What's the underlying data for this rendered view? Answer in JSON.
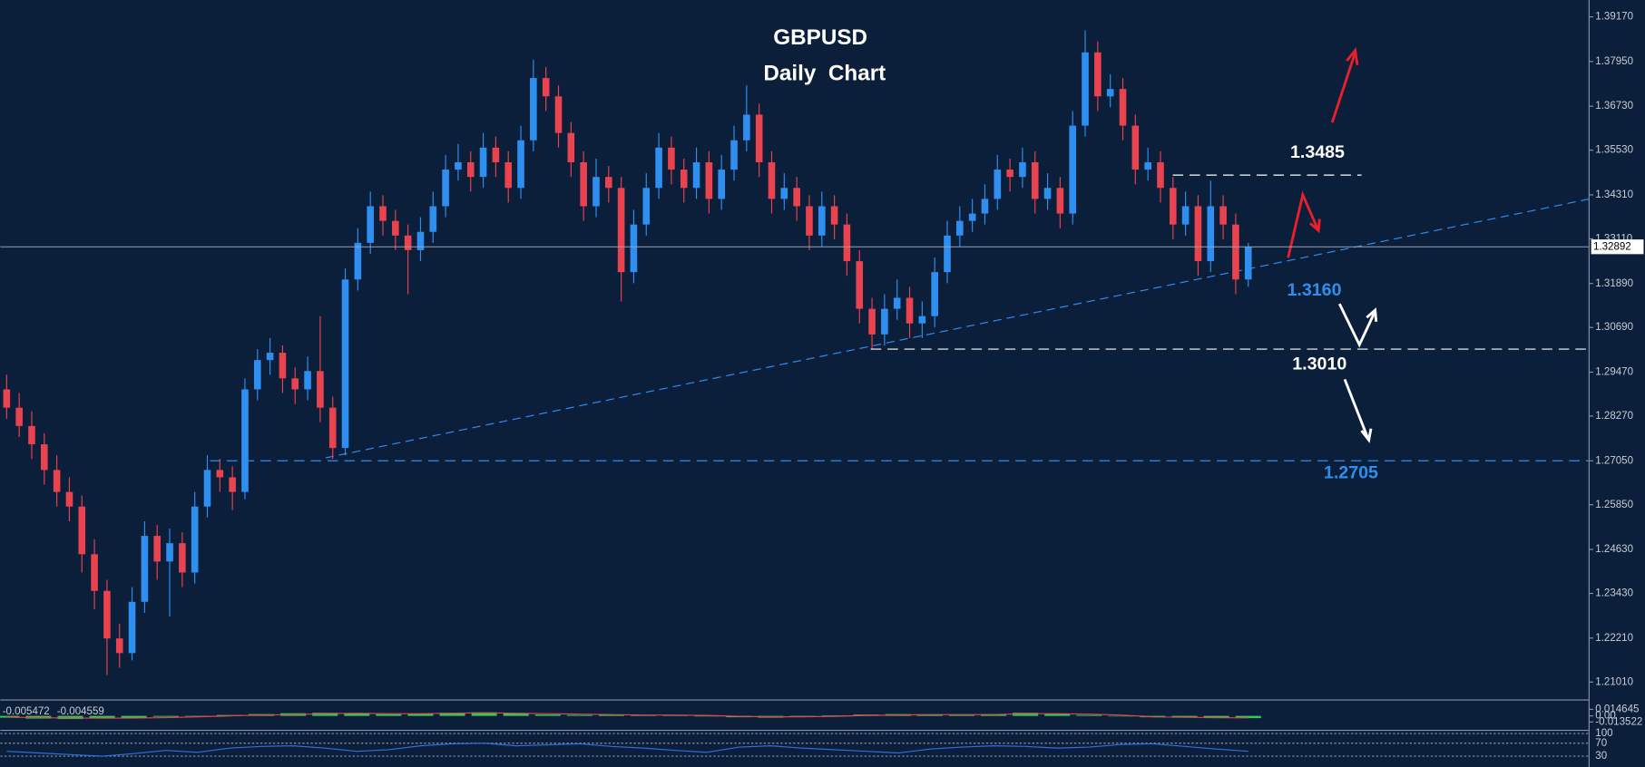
{
  "chart_data": {
    "type": "candlestick",
    "title": "GBPUSD",
    "subtitle": "Daily  Chart",
    "up_color": "#2f8ff0",
    "down_color": "#e8434f",
    "ylim": [
      1.2055,
      1.3963
    ],
    "yticks": [
      {
        "value": 1.3917,
        "label": "1.39170"
      },
      {
        "value": 1.3795,
        "label": "1.37950"
      },
      {
        "value": 1.3673,
        "label": "1.36730"
      },
      {
        "value": 1.3553,
        "label": "1.35530"
      },
      {
        "value": 1.3431,
        "label": "1.34310"
      },
      {
        "value": 1.3311,
        "label": "1.33110"
      },
      {
        "value": 1.3189,
        "label": "1.31890"
      },
      {
        "value": 1.3069,
        "label": "1.30690"
      },
      {
        "value": 1.2947,
        "label": "1.29470"
      },
      {
        "value": 1.2827,
        "label": "1.28270"
      },
      {
        "value": 1.2705,
        "label": "1.27050"
      },
      {
        "value": 1.2585,
        "label": "1.25850"
      },
      {
        "value": 1.2463,
        "label": "1.24630"
      },
      {
        "value": 1.2343,
        "label": "1.23430"
      },
      {
        "value": 1.2221,
        "label": "1.22210"
      },
      {
        "value": 1.2101,
        "label": "1.21010"
      }
    ],
    "current_price": 1.32892,
    "levels": [
      {
        "value": 1.3485,
        "label": "1.3485",
        "color": "#ffffff"
      },
      {
        "value": 1.316,
        "label": "1.3160",
        "color": "#2f8ff0"
      },
      {
        "value": 1.301,
        "label": "1.3010",
        "color": "#ffffff"
      },
      {
        "value": 1.2705,
        "label": "1.2705",
        "color": "#2f8ff0"
      }
    ],
    "candles": [
      [
        1.29,
        1.294,
        1.282,
        1.285
      ],
      [
        1.285,
        1.289,
        1.277,
        1.28
      ],
      [
        1.28,
        1.284,
        1.271,
        1.275
      ],
      [
        1.275,
        1.278,
        1.264,
        1.268
      ],
      [
        1.268,
        1.272,
        1.258,
        1.262
      ],
      [
        1.262,
        1.266,
        1.254,
        1.258
      ],
      [
        1.258,
        1.261,
        1.24,
        1.245
      ],
      [
        1.245,
        1.249,
        1.23,
        1.235
      ],
      [
        1.235,
        1.238,
        1.212,
        1.222
      ],
      [
        1.222,
        1.226,
        1.214,
        1.218
      ],
      [
        1.218,
        1.236,
        1.216,
        1.232
      ],
      [
        1.232,
        1.254,
        1.229,
        1.25
      ],
      [
        1.25,
        1.253,
        1.238,
        1.243
      ],
      [
        1.243,
        1.252,
        1.228,
        1.248
      ],
      [
        1.248,
        1.251,
        1.236,
        1.24
      ],
      [
        1.24,
        1.262,
        1.237,
        1.258
      ],
      [
        1.258,
        1.272,
        1.255,
        1.268
      ],
      [
        1.268,
        1.271,
        1.262,
        1.266
      ],
      [
        1.266,
        1.269,
        1.257,
        1.262
      ],
      [
        1.262,
        1.293,
        1.26,
        1.29
      ],
      [
        1.29,
        1.301,
        1.287,
        1.298
      ],
      [
        1.298,
        1.304,
        1.294,
        1.3
      ],
      [
        1.3,
        1.302,
        1.289,
        1.293
      ],
      [
        1.293,
        1.296,
        1.286,
        1.29
      ],
      [
        1.29,
        1.299,
        1.287,
        1.295
      ],
      [
        1.295,
        1.31,
        1.281,
        1.285
      ],
      [
        1.285,
        1.288,
        1.271,
        1.274
      ],
      [
        1.274,
        1.323,
        1.272,
        1.32
      ],
      [
        1.32,
        1.334,
        1.317,
        1.33
      ],
      [
        1.33,
        1.344,
        1.327,
        1.34
      ],
      [
        1.34,
        1.343,
        1.332,
        1.336
      ],
      [
        1.336,
        1.339,
        1.328,
        1.332
      ],
      [
        1.332,
        1.335,
        1.316,
        1.328
      ],
      [
        1.328,
        1.337,
        1.325,
        1.333
      ],
      [
        1.333,
        1.344,
        1.33,
        1.34
      ],
      [
        1.34,
        1.354,
        1.337,
        1.35
      ],
      [
        1.35,
        1.357,
        1.347,
        1.352
      ],
      [
        1.352,
        1.355,
        1.344,
        1.348
      ],
      [
        1.348,
        1.36,
        1.345,
        1.356
      ],
      [
        1.356,
        1.359,
        1.348,
        1.352
      ],
      [
        1.352,
        1.355,
        1.341,
        1.345
      ],
      [
        1.345,
        1.362,
        1.342,
        1.358
      ],
      [
        1.358,
        1.38,
        1.355,
        1.375
      ],
      [
        1.375,
        1.378,
        1.366,
        1.37
      ],
      [
        1.37,
        1.373,
        1.356,
        1.36
      ],
      [
        1.36,
        1.363,
        1.348,
        1.352
      ],
      [
        1.352,
        1.355,
        1.336,
        1.34
      ],
      [
        1.34,
        1.353,
        1.337,
        1.348
      ],
      [
        1.348,
        1.351,
        1.341,
        1.345
      ],
      [
        1.345,
        1.348,
        1.314,
        1.322
      ],
      [
        1.322,
        1.339,
        1.319,
        1.335
      ],
      [
        1.335,
        1.349,
        1.332,
        1.345
      ],
      [
        1.345,
        1.36,
        1.342,
        1.356
      ],
      [
        1.356,
        1.359,
        1.346,
        1.35
      ],
      [
        1.35,
        1.353,
        1.341,
        1.345
      ],
      [
        1.345,
        1.356,
        1.342,
        1.352
      ],
      [
        1.352,
        1.355,
        1.338,
        1.342
      ],
      [
        1.342,
        1.354,
        1.339,
        1.35
      ],
      [
        1.35,
        1.362,
        1.347,
        1.358
      ],
      [
        1.358,
        1.373,
        1.355,
        1.365
      ],
      [
        1.365,
        1.368,
        1.348,
        1.352
      ],
      [
        1.352,
        1.355,
        1.338,
        1.342
      ],
      [
        1.342,
        1.349,
        1.339,
        1.345
      ],
      [
        1.345,
        1.348,
        1.336,
        1.34
      ],
      [
        1.34,
        1.343,
        1.328,
        1.332
      ],
      [
        1.332,
        1.344,
        1.329,
        1.34
      ],
      [
        1.34,
        1.343,
        1.331,
        1.335
      ],
      [
        1.335,
        1.338,
        1.321,
        1.325
      ],
      [
        1.325,
        1.328,
        1.308,
        1.312
      ],
      [
        1.312,
        1.315,
        1.301,
        1.305
      ],
      [
        1.305,
        1.316,
        1.302,
        1.312
      ],
      [
        1.312,
        1.32,
        1.309,
        1.315
      ],
      [
        1.315,
        1.318,
        1.304,
        1.308
      ],
      [
        1.308,
        1.314,
        1.304,
        1.31
      ],
      [
        1.31,
        1.326,
        1.307,
        1.322
      ],
      [
        1.322,
        1.336,
        1.319,
        1.332
      ],
      [
        1.332,
        1.34,
        1.329,
        1.336
      ],
      [
        1.336,
        1.342,
        1.333,
        1.338
      ],
      [
        1.338,
        1.346,
        1.335,
        1.342
      ],
      [
        1.342,
        1.354,
        1.339,
        1.35
      ],
      [
        1.35,
        1.353,
        1.344,
        1.348
      ],
      [
        1.348,
        1.356,
        1.345,
        1.352
      ],
      [
        1.352,
        1.355,
        1.338,
        1.342
      ],
      [
        1.342,
        1.349,
        1.339,
        1.345
      ],
      [
        1.345,
        1.348,
        1.334,
        1.338
      ],
      [
        1.338,
        1.366,
        1.335,
        1.362
      ],
      [
        1.362,
        1.388,
        1.359,
        1.382
      ],
      [
        1.382,
        1.385,
        1.366,
        1.37
      ],
      [
        1.37,
        1.376,
        1.367,
        1.372
      ],
      [
        1.372,
        1.375,
        1.358,
        1.362
      ],
      [
        1.362,
        1.365,
        1.346,
        1.35
      ],
      [
        1.35,
        1.356,
        1.347,
        1.352
      ],
      [
        1.352,
        1.355,
        1.341,
        1.345
      ],
      [
        1.345,
        1.348,
        1.331,
        1.335
      ],
      [
        1.335,
        1.344,
        1.332,
        1.34
      ],
      [
        1.34,
        1.343,
        1.321,
        1.325
      ],
      [
        1.325,
        1.347,
        1.322,
        1.34
      ],
      [
        1.34,
        1.343,
        1.331,
        1.335
      ],
      [
        1.335,
        1.338,
        1.316,
        1.32
      ],
      [
        1.32,
        1.33,
        1.318,
        1.3289
      ]
    ],
    "macd": {
      "readout": [
        -0.005472,
        -0.004559
      ],
      "ylim": [
        -0.03,
        0.0334
      ],
      "yticks": [
        0.014645,
        {
          "value": 0,
          "label": "0.00"
        },
        -0.013522
      ],
      "hist_color": "#2ecc55",
      "signal_color": "#e8434f",
      "histogram": [
        -0.004,
        -0.006,
        -0.007,
        -0.006,
        -0.004,
        -0.002,
        0.0,
        0.002,
        0.004,
        0.006,
        0.007,
        0.006,
        0.004,
        0.005,
        0.007,
        0.008,
        0.006,
        0.003,
        0.002,
        0.003,
        0.002,
        0.001,
        -0.001,
        -0.003,
        -0.004,
        -0.002,
        0.001,
        0.003,
        0.004,
        0.003,
        0.002,
        0.004,
        0.007,
        0.005,
        0.002,
        -0.001,
        -0.003,
        -0.004,
        -0.005,
        -0.005
      ],
      "signal": [
        -0.003,
        -0.004,
        -0.005,
        -0.005,
        -0.005,
        -0.004,
        -0.002,
        0.0,
        0.002,
        0.003,
        0.005,
        0.006,
        0.005,
        0.005,
        0.006,
        0.007,
        0.006,
        0.005,
        0.004,
        0.003,
        0.002,
        0.002,
        0.001,
        -0.001,
        -0.002,
        -0.002,
        -0.001,
        0.001,
        0.002,
        0.003,
        0.003,
        0.003,
        0.005,
        0.005,
        0.004,
        0.002,
        -0.002,
        -0.003,
        -0.004,
        -0.0045
      ]
    },
    "rsi": {
      "ylim": [
        0,
        100
      ],
      "yticks": [
        100,
        70,
        30
      ],
      "color": "#2f6fe0",
      "values": [
        45,
        40,
        35,
        30,
        38,
        48,
        42,
        55,
        60,
        62,
        55,
        45,
        50,
        62,
        68,
        70,
        62,
        65,
        68,
        60,
        55,
        48,
        42,
        58,
        62,
        55,
        50,
        45,
        40,
        52,
        58,
        62,
        60,
        55,
        58,
        66,
        68,
        60,
        52,
        45
      ]
    }
  }
}
